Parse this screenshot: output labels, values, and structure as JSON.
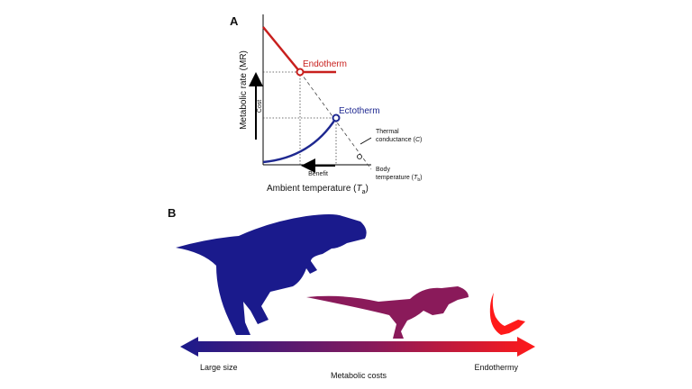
{
  "panel_a": {
    "label": "A",
    "y_axis_label": "Metabolic rate (MR)",
    "cost": "Cost",
    "endotherm": "Endotherm",
    "ectotherm": "Ectotherm",
    "thermal_conductance": [
      "Thermal",
      "conductance (",
      "C",
      ")"
    ],
    "benefit": "Benefit",
    "body_temperature": [
      "Body",
      "temperature (",
      "T",
      "b",
      ")"
    ],
    "x_axis_label": [
      "Ambient temperature (",
      "T",
      "a",
      ")"
    ]
  },
  "panel_b": {
    "label": "B",
    "left": "Large size",
    "center": "Metabolic costs",
    "right": "Endothermy"
  }
}
